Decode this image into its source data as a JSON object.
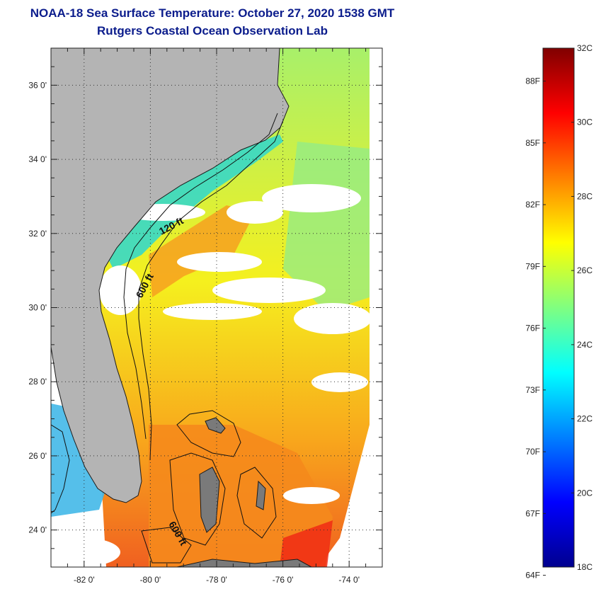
{
  "title": {
    "line1": "NOAA-18 Sea Surface Temperature:  October 27, 2020 1538 GMT",
    "line2": "Rutgers Coastal Ocean Observation Lab"
  },
  "map": {
    "lon_range": [
      -83,
      -73
    ],
    "lat_range": [
      23,
      37
    ],
    "lat_ticks": [
      {
        "value": 36,
        "label": "36 0'"
      },
      {
        "value": 34,
        "label": "34 0'"
      },
      {
        "value": 32,
        "label": "32 0'"
      },
      {
        "value": 30,
        "label": "30 0'"
      },
      {
        "value": 28,
        "label": "28 0'"
      },
      {
        "value": 26,
        "label": "26 0'"
      },
      {
        "value": 24,
        "label": "24 0'"
      }
    ],
    "lon_ticks": [
      {
        "value": -82,
        "label": "-82 0'"
      },
      {
        "value": -80,
        "label": "-80 0'"
      },
      {
        "value": -78,
        "label": "-78 0'"
      },
      {
        "value": -76,
        "label": "-76 0'"
      },
      {
        "value": -74,
        "label": "-74 0'"
      }
    ],
    "contour_labels": [
      "120 ft",
      "600 ft",
      "600 ft"
    ],
    "colors": {
      "land": "#b4b4b4",
      "cloud": "#ffffff",
      "grid": "#333333"
    }
  },
  "colorbar": {
    "range_c": [
      18,
      32
    ],
    "celsius_labels": [
      {
        "value": 32,
        "label": "32C"
      },
      {
        "value": 30,
        "label": "30C"
      },
      {
        "value": 28,
        "label": "28C"
      },
      {
        "value": 26,
        "label": "26C"
      },
      {
        "value": 24,
        "label": "24C"
      },
      {
        "value": 22,
        "label": "22C"
      },
      {
        "value": 20,
        "label": "20C"
      },
      {
        "value": 18,
        "label": "18C"
      }
    ],
    "fahrenheit_labels": [
      {
        "value": 88,
        "label": "88F"
      },
      {
        "value": 85,
        "label": "85F"
      },
      {
        "value": 82,
        "label": "82F"
      },
      {
        "value": 79,
        "label": "79F"
      },
      {
        "value": 76,
        "label": "76F"
      },
      {
        "value": 73,
        "label": "73F"
      },
      {
        "value": 70,
        "label": "70F"
      },
      {
        "value": 67,
        "label": "67F"
      },
      {
        "value": 64,
        "label": "64F"
      }
    ],
    "colors": [
      "#00008f",
      "#0000ff",
      "#0080ff",
      "#00ffff",
      "#80ff80",
      "#ffff00",
      "#ff8000",
      "#ff0000",
      "#800000"
    ]
  }
}
